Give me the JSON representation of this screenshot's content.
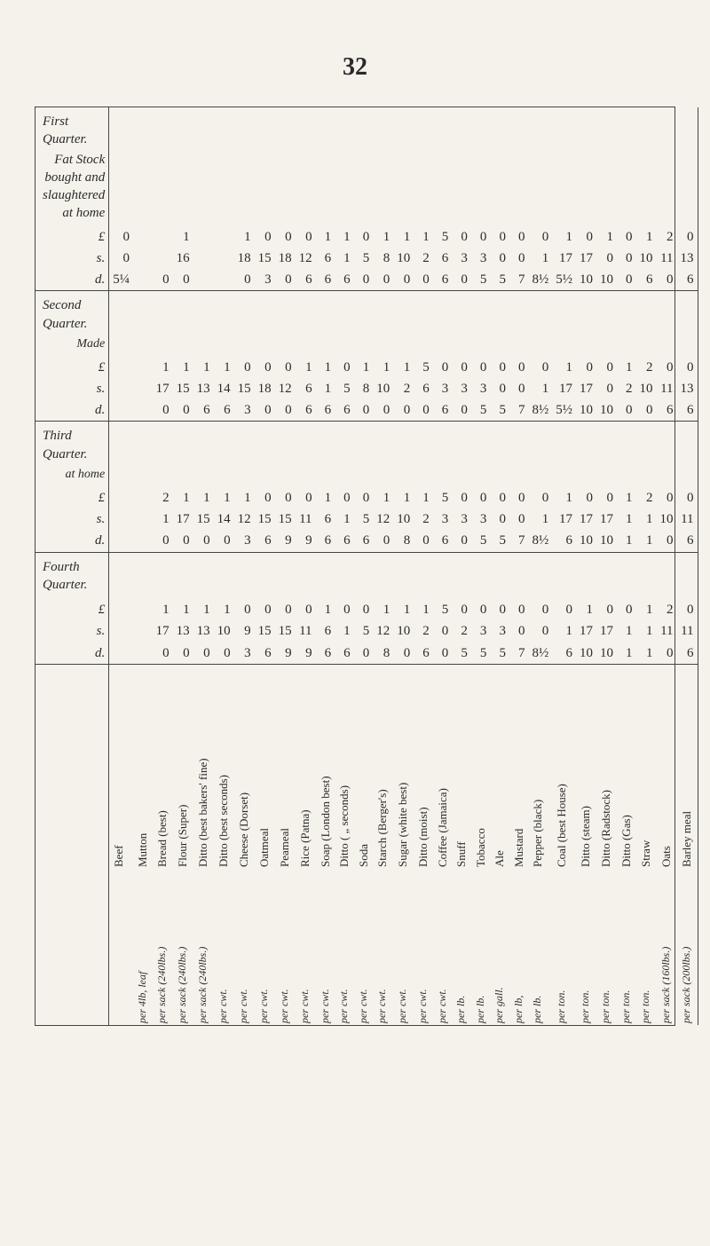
{
  "page_number": "32",
  "group_heading": "Fat Stock bought and slaughtered at home",
  "quarters": [
    {
      "label": "First Quarter.",
      "note": ""
    },
    {
      "label": "Second Quarter.",
      "note": "Made"
    },
    {
      "label": "Third Quarter.",
      "note": "at home"
    },
    {
      "label": "Fourth Quarter.",
      "note": ""
    }
  ],
  "lsd_labels": {
    "l": "£",
    "s": "s.",
    "d": "d."
  },
  "items": [
    {
      "name": "Beef",
      "unit": "",
      "q": [
        [
          "0",
          "0",
          "5¼"
        ],
        [
          "",
          "",
          ""
        ],
        [
          "",
          "",
          ""
        ],
        [
          "",
          "",
          ""
        ]
      ]
    },
    {
      "name": "Mutton",
      "unit": "per 4lb, leaf",
      "q": [
        [
          "",
          "",
          ""
        ],
        [
          "",
          "",
          ""
        ],
        [
          "",
          "",
          ""
        ],
        [
          "",
          "",
          ""
        ]
      ]
    },
    {
      "name": "Bread (best)",
      "unit": "per sack (240lbs.)",
      "q": [
        [
          "",
          "",
          "0"
        ],
        [
          "1",
          "17",
          "0"
        ],
        [
          "2",
          "1",
          "0"
        ],
        [
          "1",
          "17",
          "0"
        ]
      ]
    },
    {
      "name": "Flour (Super)",
      "unit": "per sack (240lbs.)",
      "q": [
        [
          "1",
          "16",
          "0"
        ],
        [
          "1",
          "15",
          "0"
        ],
        [
          "1",
          "17",
          "0"
        ],
        [
          "1",
          "13",
          "0"
        ]
      ]
    },
    {
      "name": "Ditto (best bakers' fine)",
      "unit": "per sack (240lbs.)",
      "q": [
        [
          "",
          "",
          ""
        ],
        [
          "1",
          "13",
          "6"
        ],
        [
          "1",
          "15",
          "0"
        ],
        [
          "1",
          "13",
          "0"
        ]
      ]
    },
    {
      "name": "Ditto (best seconds)",
      "unit": "per cwt.",
      "q": [
        [
          "",
          "",
          ""
        ],
        [
          "1",
          "14",
          "6"
        ],
        [
          "1",
          "14",
          "0"
        ],
        [
          "1",
          "10",
          "0"
        ]
      ]
    },
    {
      "name": "Cheese (Dorset)",
      "unit": "per cwt.",
      "q": [
        [
          "1",
          "18",
          "0"
        ],
        [
          "0",
          "15",
          "3"
        ],
        [
          "1",
          "12",
          "3"
        ],
        [
          "0",
          "9",
          "3"
        ]
      ]
    },
    {
      "name": "Oatmeal",
      "unit": "per cwt.",
      "q": [
        [
          "0",
          "15",
          "3"
        ],
        [
          "0",
          "18",
          "0"
        ],
        [
          "0",
          "15",
          "6"
        ],
        [
          "0",
          "15",
          "6"
        ]
      ]
    },
    {
      "name": "Peameal",
      "unit": "per cwt.",
      "q": [
        [
          "0",
          "18",
          "0"
        ],
        [
          "0",
          "12",
          "0"
        ],
        [
          "0",
          "15",
          "9"
        ],
        [
          "0",
          "15",
          "9"
        ]
      ]
    },
    {
      "name": "Rice (Patna)",
      "unit": "per cwt.",
      "q": [
        [
          "0",
          "12",
          "6"
        ],
        [
          "1",
          "6",
          "6"
        ],
        [
          "0",
          "11",
          "9"
        ],
        [
          "0",
          "11",
          "9"
        ]
      ]
    },
    {
      "name": "Soap (London best)",
      "unit": "per cwt.",
      "q": [
        [
          "1",
          "6",
          "6"
        ],
        [
          "1",
          "1",
          "6"
        ],
        [
          "1",
          "6",
          "6"
        ],
        [
          "1",
          "6",
          "6"
        ]
      ]
    },
    {
      "name": "Ditto (  „    seconds)",
      "unit": "per cwt.",
      "q": [
        [
          "1",
          "1",
          "6"
        ],
        [
          "0",
          "5",
          "6"
        ],
        [
          "0",
          "1",
          "6"
        ],
        [
          "0",
          "1",
          "6"
        ]
      ]
    },
    {
      "name": "Soda",
      "unit": "per cwt.",
      "q": [
        [
          "0",
          "5",
          "0"
        ],
        [
          "1",
          "8",
          "0"
        ],
        [
          "0",
          "5",
          "6"
        ],
        [
          "0",
          "5",
          "0"
        ]
      ]
    },
    {
      "name": "Starch (Berger's)",
      "unit": "per cwt.",
      "q": [
        [
          "1",
          "8",
          "0"
        ],
        [
          "1",
          "10",
          "0"
        ],
        [
          "1",
          "12",
          "0"
        ],
        [
          "1",
          "12",
          "8"
        ]
      ]
    },
    {
      "name": "Sugar (white best)",
      "unit": "per cwt.",
      "q": [
        [
          "1",
          "10",
          "0"
        ],
        [
          "1",
          "2",
          "0"
        ],
        [
          "1",
          "10",
          "8"
        ],
        [
          "1",
          "10",
          "0"
        ]
      ]
    },
    {
      "name": "Ditto (moist)",
      "unit": "per cwt.",
      "q": [
        [
          "1",
          "2",
          "0"
        ],
        [
          "5",
          "6",
          "0"
        ],
        [
          "1",
          "2",
          "0"
        ],
        [
          "1",
          "2",
          "6"
        ]
      ]
    },
    {
      "name": "Coffee (Jamaica)",
      "unit": "per cwt.",
      "q": [
        [
          "5",
          "6",
          "6"
        ],
        [
          "0",
          "3",
          "6"
        ],
        [
          "5",
          "3",
          "6"
        ],
        [
          "5",
          "0",
          "0"
        ]
      ]
    },
    {
      "name": "Snuff",
      "unit": "per lb.",
      "q": [
        [
          "0",
          "3",
          "0"
        ],
        [
          "0",
          "3",
          "0"
        ],
        [
          "0",
          "3",
          "0"
        ],
        [
          "0",
          "2",
          "5"
        ]
      ]
    },
    {
      "name": "Tobacco",
      "unit": "per lb.",
      "q": [
        [
          "0",
          "3",
          "5"
        ],
        [
          "0",
          "3",
          "5"
        ],
        [
          "0",
          "3",
          "5"
        ],
        [
          "0",
          "3",
          "5"
        ]
      ]
    },
    {
      "name": "Ale",
      "unit": "per gall.",
      "q": [
        [
          "0",
          "0",
          "5"
        ],
        [
          "0",
          "0",
          "5"
        ],
        [
          "0",
          "0",
          "5"
        ],
        [
          "0",
          "3",
          "5"
        ]
      ]
    },
    {
      "name": "Mustard",
      "unit": "per lb,",
      "q": [
        [
          "0",
          "0",
          "7"
        ],
        [
          "0",
          "0",
          "7"
        ],
        [
          "0",
          "0",
          "7"
        ],
        [
          "0",
          "0",
          "7"
        ]
      ]
    },
    {
      "name": "Pepper (black)",
      "unit": "per lb.",
      "q": [
        [
          "0",
          "1",
          "8½"
        ],
        [
          "0",
          "1",
          "8½"
        ],
        [
          "0",
          "1",
          "8½"
        ],
        [
          "0",
          "0",
          "8½"
        ]
      ]
    },
    {
      "name": "Coal (best House)",
      "unit": "per ton.",
      "q": [
        [
          "1",
          "17",
          "5½"
        ],
        [
          "1",
          "17",
          "5½"
        ],
        [
          "1",
          "17",
          "6"
        ],
        [
          "0",
          "1",
          "6"
        ]
      ]
    },
    {
      "name": "Ditto (steam)",
      "unit": "per ton.",
      "q": [
        [
          "0",
          "17",
          "10"
        ],
        [
          "0",
          "17",
          "10"
        ],
        [
          "0",
          "17",
          "10"
        ],
        [
          "1",
          "17",
          "10"
        ]
      ]
    },
    {
      "name": "Ditto (Radstock)",
      "unit": "per ton.",
      "q": [
        [
          "1",
          "0",
          "10"
        ],
        [
          "0",
          "0",
          "10"
        ],
        [
          "0",
          "17",
          "10"
        ],
        [
          "0",
          "17",
          "10"
        ]
      ]
    },
    {
      "name": "Ditto (Gas)",
      "unit": "per ton.",
      "q": [
        [
          "0",
          "0",
          "0"
        ],
        [
          "1",
          "2",
          "0"
        ],
        [
          "1",
          "1",
          "1"
        ],
        [
          "0",
          "1",
          "1"
        ]
      ]
    },
    {
      "name": "Straw",
      "unit": "per ton.",
      "q": [
        [
          "1",
          "10",
          "6"
        ],
        [
          "2",
          "10",
          "0"
        ],
        [
          "2",
          "1",
          "1"
        ],
        [
          "1",
          "1",
          "1"
        ]
      ]
    },
    {
      "name": "Oats",
      "unit": "per sack (160lbs.)",
      "q": [
        [
          "2",
          "11",
          "0"
        ],
        [
          "0",
          "11",
          "6"
        ],
        [
          "0",
          "10",
          "0"
        ],
        [
          "2",
          "11",
          "0"
        ]
      ]
    },
    {
      "name": "Barley meal",
      "unit": "per sack (200lbs.)",
      "q": [
        [
          "0",
          "13",
          "6"
        ],
        [
          "0",
          "13",
          "6"
        ],
        [
          "0",
          "11",
          "6"
        ],
        [
          "0",
          "11",
          "6"
        ]
      ]
    }
  ]
}
